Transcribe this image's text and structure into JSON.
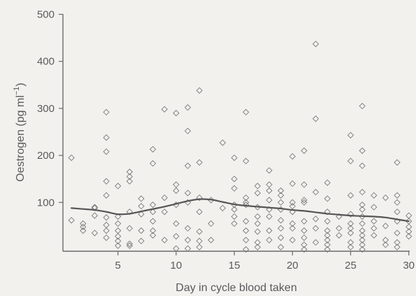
{
  "chart_data": {
    "type": "scatter",
    "title": "",
    "xlabel": "Day in cycle blood taken",
    "ylabel": "Oestrogen (pg ml",
    "ylabel_sup": "−1",
    "ylabel_close": ")",
    "xlim": [
      0,
      30
    ],
    "ylim": [
      0,
      500
    ],
    "xticks": [
      5,
      10,
      15,
      20,
      25,
      30
    ],
    "yticks": [
      100,
      200,
      300,
      400,
      500
    ],
    "grid": false,
    "series": [
      {
        "marker": "diamond-open",
        "points": [
          [
            1,
            195
          ],
          [
            1,
            62
          ],
          [
            2,
            55
          ],
          [
            2,
            48
          ],
          [
            2,
            40
          ],
          [
            3,
            90
          ],
          [
            3,
            88
          ],
          [
            3,
            72
          ],
          [
            3,
            35
          ],
          [
            4,
            292
          ],
          [
            4,
            238
          ],
          [
            4,
            208
          ],
          [
            4,
            145
          ],
          [
            4,
            115
          ],
          [
            4,
            68
          ],
          [
            4,
            52
          ],
          [
            4,
            40
          ],
          [
            4,
            25
          ],
          [
            5,
            135
          ],
          [
            5,
            70
          ],
          [
            5,
            55
          ],
          [
            5,
            40
          ],
          [
            5,
            28
          ],
          [
            5,
            18
          ],
          [
            5,
            8
          ],
          [
            6,
            165
          ],
          [
            6,
            155
          ],
          [
            6,
            145
          ],
          [
            6,
            80
          ],
          [
            6,
            45
          ],
          [
            6,
            12
          ],
          [
            6,
            8
          ],
          [
            7,
            108
          ],
          [
            7,
            92
          ],
          [
            7,
            75
          ],
          [
            7,
            40
          ],
          [
            7,
            18
          ],
          [
            8,
            213
          ],
          [
            8,
            183
          ],
          [
            8,
            95
          ],
          [
            8,
            80
          ],
          [
            8,
            60
          ],
          [
            8,
            40
          ],
          [
            8,
            30
          ],
          [
            9,
            298
          ],
          [
            9,
            110
          ],
          [
            9,
            80
          ],
          [
            9,
            20
          ],
          [
            10,
            290
          ],
          [
            10,
            138
          ],
          [
            10,
            125
          ],
          [
            10,
            95
          ],
          [
            10,
            55
          ],
          [
            10,
            28
          ],
          [
            10,
            2
          ],
          [
            11,
            302
          ],
          [
            11,
            252
          ],
          [
            11,
            178
          ],
          [
            11,
            120
          ],
          [
            11,
            100
          ],
          [
            11,
            45
          ],
          [
            11,
            20
          ],
          [
            11,
            2
          ],
          [
            12,
            338
          ],
          [
            12,
            185
          ],
          [
            12,
            110
          ],
          [
            12,
            80
          ],
          [
            12,
            38
          ],
          [
            12,
            18
          ],
          [
            12,
            5
          ],
          [
            13,
            105
          ],
          [
            13,
            55
          ],
          [
            13,
            20
          ],
          [
            14,
            227
          ],
          [
            14,
            88
          ],
          [
            15,
            195
          ],
          [
            15,
            150
          ],
          [
            15,
            130
          ],
          [
            15,
            95
          ],
          [
            15,
            85
          ],
          [
            15,
            70
          ],
          [
            15,
            55
          ],
          [
            16,
            292
          ],
          [
            16,
            188
          ],
          [
            16,
            110
          ],
          [
            16,
            100
          ],
          [
            16,
            95
          ],
          [
            16,
            60
          ],
          [
            16,
            40
          ],
          [
            16,
            20
          ],
          [
            16,
            0
          ],
          [
            17,
            135
          ],
          [
            17,
            120
          ],
          [
            17,
            90
          ],
          [
            17,
            70
          ],
          [
            17,
            55
          ],
          [
            17,
            38
          ],
          [
            17,
            15
          ],
          [
            17,
            5
          ],
          [
            18,
            168
          ],
          [
            18,
            138
          ],
          [
            18,
            125
          ],
          [
            18,
            105
          ],
          [
            18,
            85
          ],
          [
            18,
            70
          ],
          [
            18,
            40
          ],
          [
            18,
            20
          ],
          [
            19,
            125
          ],
          [
            19,
            115
          ],
          [
            19,
            100
          ],
          [
            19,
            85
          ],
          [
            19,
            62
          ],
          [
            19,
            45
          ],
          [
            19,
            25
          ],
          [
            19,
            5
          ],
          [
            20,
            198
          ],
          [
            20,
            140
          ],
          [
            20,
            100
          ],
          [
            20,
            92
          ],
          [
            20,
            80
          ],
          [
            20,
            55
          ],
          [
            20,
            45
          ],
          [
            20,
            20
          ],
          [
            21,
            210
          ],
          [
            21,
            138
          ],
          [
            21,
            105
          ],
          [
            21,
            100
          ],
          [
            21,
            60
          ],
          [
            21,
            40
          ],
          [
            21,
            25
          ],
          [
            21,
            10
          ],
          [
            21,
            0
          ],
          [
            22,
            437
          ],
          [
            22,
            278
          ],
          [
            22,
            122
          ],
          [
            22,
            65
          ],
          [
            22,
            45
          ],
          [
            22,
            15
          ],
          [
            23,
            142
          ],
          [
            23,
            108
          ],
          [
            23,
            80
          ],
          [
            23,
            60
          ],
          [
            23,
            40
          ],
          [
            23,
            30
          ],
          [
            23,
            20
          ],
          [
            23,
            10
          ],
          [
            23,
            0
          ],
          [
            24,
            70
          ],
          [
            24,
            45
          ],
          [
            24,
            30
          ],
          [
            25,
            243
          ],
          [
            25,
            188
          ],
          [
            25,
            115
          ],
          [
            25,
            75
          ],
          [
            25,
            55
          ],
          [
            25,
            45
          ],
          [
            25,
            35
          ],
          [
            25,
            15
          ],
          [
            25,
            5
          ],
          [
            26,
            305
          ],
          [
            26,
            210
          ],
          [
            26,
            178
          ],
          [
            26,
            122
          ],
          [
            26,
            95
          ],
          [
            26,
            85
          ],
          [
            26,
            70
          ],
          [
            26,
            55
          ],
          [
            26,
            40
          ],
          [
            26,
            30
          ],
          [
            26,
            20
          ],
          [
            26,
            10
          ],
          [
            26,
            0
          ],
          [
            27,
            115
          ],
          [
            27,
            90
          ],
          [
            27,
            60
          ],
          [
            27,
            45
          ],
          [
            27,
            30
          ],
          [
            28,
            110
          ],
          [
            28,
            50
          ],
          [
            28,
            20
          ],
          [
            28,
            10
          ],
          [
            29,
            185
          ],
          [
            29,
            115
          ],
          [
            29,
            100
          ],
          [
            29,
            80
          ],
          [
            29,
            60
          ],
          [
            29,
            35
          ],
          [
            29,
            15
          ],
          [
            29,
            5
          ],
          [
            30,
            72
          ],
          [
            30,
            60
          ],
          [
            30,
            48
          ],
          [
            30,
            38
          ],
          [
            30,
            28
          ]
        ]
      },
      {
        "type": "line",
        "smooth": true,
        "x": [
          1,
          2,
          3,
          4,
          5,
          6,
          7,
          8,
          9,
          10,
          11,
          12,
          13,
          14,
          15,
          16,
          17,
          18,
          19,
          20,
          21,
          22,
          23,
          24,
          25,
          26,
          27,
          28,
          29,
          30
        ],
        "y": [
          88,
          86,
          84,
          80,
          75,
          76,
          81,
          86,
          91,
          97,
          103,
          107,
          106,
          101,
          96,
          93,
          91,
          89,
          87,
          84,
          82,
          79,
          76,
          74,
          72,
          71,
          70,
          68,
          64,
          60
        ]
      }
    ]
  }
}
